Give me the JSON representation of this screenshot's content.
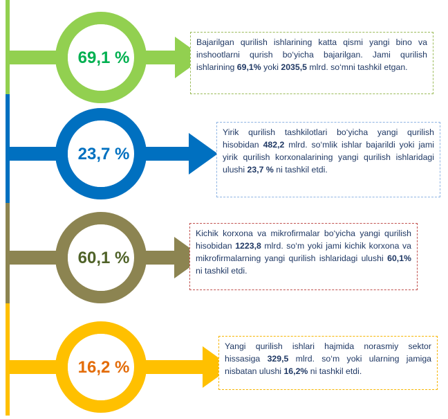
{
  "items": [
    {
      "percent": "69,1 %",
      "color": "#92d050",
      "text_color": "#00b050",
      "note_border": "#9bbb59",
      "text": [
        {
          "t": "Bajarilgan qurilish ishlarining katta qismi yangi bino va inshootlarni qurish bo‘yicha bajarilgan. Jami qurilish ishlarining ",
          "b": false
        },
        {
          "t": "69,1%",
          "b": true
        },
        {
          "t": "  yoki ",
          "b": false
        },
        {
          "t": "2035,5",
          "b": true
        },
        {
          "t": " mlrd. so‘mni tashkil etgan.",
          "b": false
        }
      ]
    },
    {
      "percent": "23,7 %",
      "color": "#0070c0",
      "text_color": "#0070c0",
      "note_border": "#8eb4e3",
      "text": [
        {
          "t": "Yirik qurilish tashkilotlari bo‘yicha yangi qurilish hisobidan ",
          "b": false
        },
        {
          "t": "482,2",
          "b": true
        },
        {
          "t": " mlrd. so‘mlik ishlar bajarildi yoki jami yirik qurilish korxonalarining yangi qurilish ishlaridagi ulushi  ",
          "b": false
        },
        {
          "t": "23,7 %",
          "b": true
        },
        {
          "t": " ni tashkil etdi.",
          "b": false
        }
      ]
    },
    {
      "percent": "60,1 %",
      "color": "#8c8451",
      "text_color": "#4f6228",
      "note_border": "#c0504d",
      "text": [
        {
          "t": "Kichik korxona va mikrofirmalar bo‘yicha yangi qurilish hisobidan  ",
          "b": false
        },
        {
          "t": "1223,8",
          "b": true
        },
        {
          "t": " mlrd. so‘m yoki jami kichik korxona va mikrofirmalarning yangi qurilish ishlaridagi ulushi  ",
          "b": false
        },
        {
          "t": "60,1%",
          "b": true
        },
        {
          "t": " ni tashkil etdi.",
          "b": false
        }
      ]
    },
    {
      "percent": "16,2 %",
      "color": "#ffc000",
      "text_color": "#e36c09",
      "note_border": "#f7b500",
      "text": [
        {
          "t": "Yangi qurilish ishlari hajmida norasmiy sektor hissasiga   ",
          "b": false
        },
        {
          "t": "329,5",
          "b": true
        },
        {
          "t": " mlrd. so‘m yoki ularning jamiga nisbatan ulushi ",
          "b": false
        },
        {
          "t": "16,2%",
          "b": true
        },
        {
          "t": " ni tashkil etdi.",
          "b": false
        }
      ]
    }
  ]
}
